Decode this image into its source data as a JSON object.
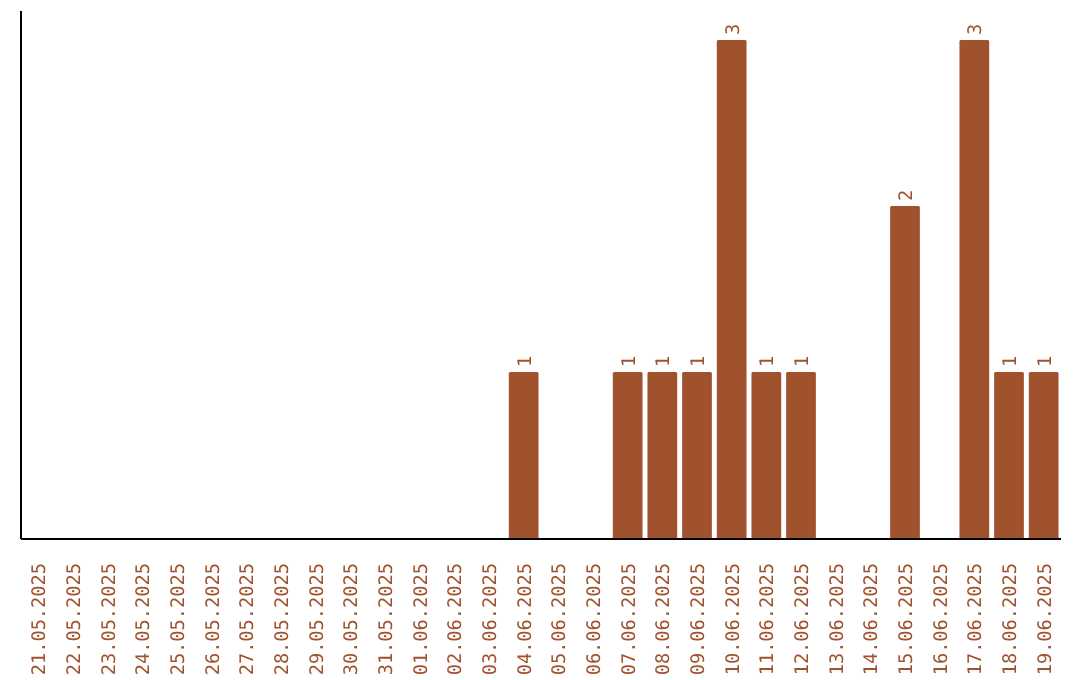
{
  "chart_data": {
    "type": "bar",
    "color": "#a0522d",
    "categories": [
      "21.05.2025",
      "22.05.2025",
      "23.05.2025",
      "24.05.2025",
      "25.05.2025",
      "26.05.2025",
      "27.05.2025",
      "28.05.2025",
      "29.05.2025",
      "30.05.2025",
      "31.05.2025",
      "01.06.2025",
      "02.06.2025",
      "03.06.2025",
      "04.06.2025",
      "05.06.2025",
      "06.06.2025",
      "07.06.2025",
      "08.06.2025",
      "09.06.2025",
      "10.06.2025",
      "11.06.2025",
      "12.06.2025",
      "13.06.2025",
      "14.06.2025",
      "15.06.2025",
      "16.06.2025",
      "17.06.2025",
      "18.06.2025",
      "19.06.2025"
    ],
    "values": [
      null,
      null,
      null,
      null,
      null,
      null,
      null,
      null,
      null,
      null,
      null,
      null,
      null,
      null,
      1,
      null,
      null,
      1,
      1,
      1,
      3,
      1,
      1,
      null,
      null,
      2,
      null,
      3,
      1,
      1
    ],
    "data_labels": true,
    "grid": false
  }
}
